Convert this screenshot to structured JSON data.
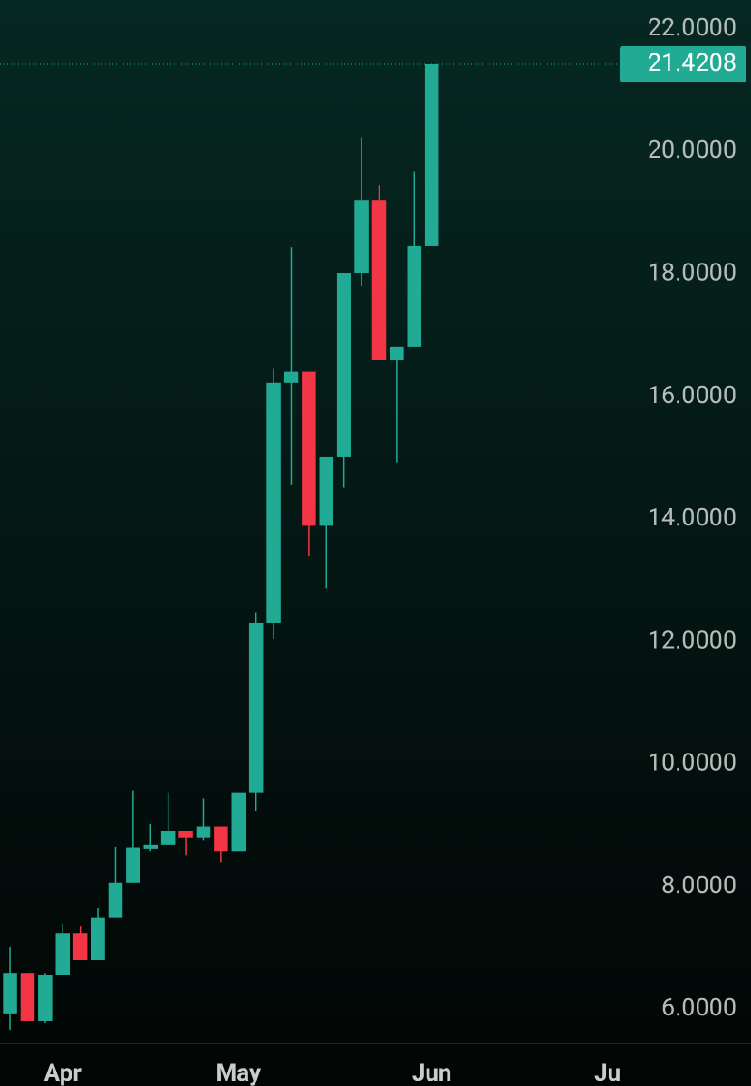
{
  "chart_data": {
    "type": "candlestick",
    "x": [
      0,
      1,
      2,
      3,
      4,
      5,
      6,
      7,
      8,
      9,
      10,
      11,
      12,
      13,
      14,
      15,
      16,
      17,
      18,
      19,
      20,
      21,
      22,
      23,
      24
    ],
    "open": [
      5.93,
      6.59,
      5.81,
      6.56,
      7.24,
      6.8,
      7.5,
      8.06,
      8.62,
      8.68,
      8.91,
      8.8,
      8.98,
      8.57,
      9.54,
      12.3,
      16.22,
      16.4,
      13.89,
      15.02,
      18.02,
      19.2,
      16.6,
      16.81,
      18.45
    ],
    "high": [
      7.02,
      6.59,
      6.59,
      7.4,
      7.36,
      7.65,
      8.65,
      9.57,
      9.02,
      9.54,
      8.91,
      9.44,
      8.98,
      9.54,
      12.47,
      16.46,
      18.43,
      16.4,
      15.02,
      18.02,
      20.23,
      19.45,
      16.81,
      19.67,
      21.4208
    ],
    "low": [
      5.66,
      5.81,
      5.78,
      6.56,
      6.8,
      6.8,
      7.5,
      8.06,
      8.57,
      8.68,
      8.51,
      8.76,
      8.39,
      8.57,
      9.24,
      12.05,
      14.55,
      13.39,
      12.87,
      14.51,
      17.8,
      16.6,
      14.92,
      16.81,
      18.45
    ],
    "close": [
      6.59,
      5.81,
      6.56,
      7.24,
      6.8,
      7.5,
      8.06,
      8.64,
      8.68,
      8.91,
      8.8,
      8.98,
      8.57,
      9.54,
      12.3,
      16.22,
      16.4,
      13.89,
      15.02,
      18.02,
      19.2,
      16.6,
      16.81,
      18.45,
      21.4208
    ],
    "up_color": "#22ab94",
    "down_color": "#f23645",
    "xlim": [
      -0.57,
      34.48
    ],
    "xticks": [
      {
        "value": 3,
        "label": "Apr"
      },
      {
        "value": 13,
        "label": "May"
      },
      {
        "value": 24,
        "label": "Jun"
      },
      {
        "value": 34,
        "label": "Ju"
      }
    ],
    "ylim": [
      5.44,
      22.47
    ],
    "yticks": [
      {
        "value": 6,
        "label": "6.0000"
      },
      {
        "value": 8,
        "label": "8.0000"
      },
      {
        "value": 10,
        "label": "10.0000"
      },
      {
        "value": 12,
        "label": "12.0000"
      },
      {
        "value": 14,
        "label": "14.0000"
      },
      {
        "value": 16,
        "label": "16.0000"
      },
      {
        "value": 18,
        "label": "18.0000"
      },
      {
        "value": 20,
        "label": "20.0000"
      },
      {
        "value": 22,
        "label": "22.0000"
      }
    ],
    "last_price": 21.4208
  }
}
